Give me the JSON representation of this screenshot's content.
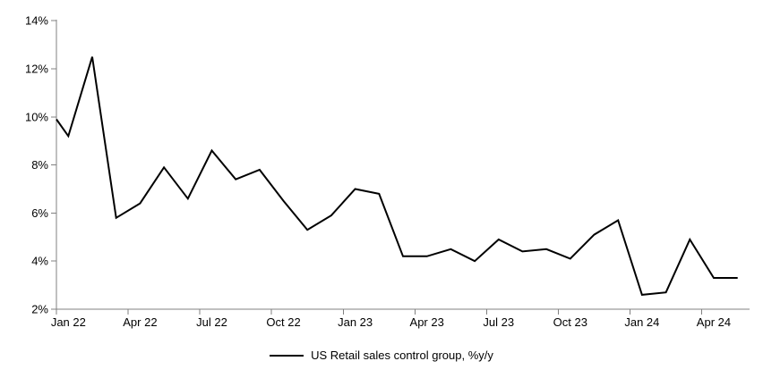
{
  "chart_data": {
    "type": "line",
    "title": "",
    "legend": {
      "label": "US Retail sales control group, %y/y",
      "position": "bottom-center"
    },
    "x": [
      "Jan 22",
      "Feb 22",
      "Mar 22",
      "Apr 22",
      "May 22",
      "Jun 22",
      "Jul 22",
      "Aug 22",
      "Sep 22",
      "Oct 22",
      "Nov 22",
      "Dec 22",
      "Jan 23",
      "Feb 23",
      "Mar 23",
      "Apr 23",
      "May 23",
      "Jun 23",
      "Jul 23",
      "Aug 23",
      "Sep 23",
      "Oct 23",
      "Nov 23",
      "Dec 23",
      "Jan 24",
      "Feb 24",
      "Mar 24",
      "Apr 24",
      "May 24"
    ],
    "series": [
      {
        "name": "US Retail sales control group, %y/y",
        "color": "#000000",
        "values": [
          9.2,
          12.5,
          5.8,
          6.4,
          7.9,
          6.6,
          8.6,
          7.4,
          7.8,
          6.5,
          5.3,
          5.9,
          7.0,
          6.8,
          4.2,
          4.2,
          4.5,
          4.0,
          4.9,
          4.4,
          4.5,
          4.1,
          5.1,
          5.7,
          2.6,
          2.7,
          4.9,
          3.3,
          3.3
        ]
      }
    ],
    "clipped_start": {
      "note": "line enters plot area at the left edge (point before Jan 22 is off-axis)",
      "value_at_left_edge": 9.9
    },
    "y_tick_labels": [
      "2%",
      "4%",
      "6%",
      "8%",
      "10%",
      "12%",
      "14%"
    ],
    "y_tick_values": [
      2,
      4,
      6,
      8,
      10,
      12,
      14
    ],
    "x_tick_labels": [
      "Jan 22",
      "Apr 22",
      "Jul 22",
      "Oct 22",
      "Jan 23",
      "Apr 23",
      "Jul 23",
      "Oct 23",
      "Jan 24",
      "Apr 24"
    ],
    "x_tick_month_index": [
      0,
      3,
      6,
      9,
      12,
      15,
      18,
      21,
      24,
      27
    ],
    "ylim": [
      2,
      14
    ],
    "grid": false,
    "line_width": 2,
    "axis_color": "#808080",
    "text_color": "#000000",
    "background": "#ffffff"
  }
}
